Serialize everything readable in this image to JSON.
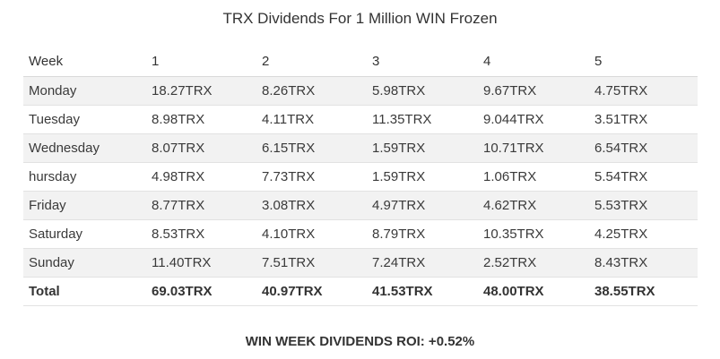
{
  "title": "TRX Dividends For 1 Million WIN Frozen",
  "table": {
    "headers": [
      "Week",
      "1",
      "2",
      "3",
      "4",
      "5"
    ],
    "rows": [
      [
        "Monday",
        "18.27TRX",
        "8.26TRX",
        "5.98TRX",
        "9.67TRX",
        "4.75TRX"
      ],
      [
        "Tuesday",
        "8.98TRX",
        "4.11TRX",
        "11.35TRX",
        "9.044TRX",
        "3.51TRX"
      ],
      [
        "Wednesday",
        "8.07TRX",
        "6.15TRX",
        "1.59TRX",
        "10.71TRX",
        "6.54TRX"
      ],
      [
        "hursday",
        "4.98TRX",
        "7.73TRX",
        "1.59TRX",
        "1.06TRX",
        "5.54TRX"
      ],
      [
        "Friday",
        "8.77TRX",
        "3.08TRX",
        "4.97TRX",
        "4.62TRX",
        "5.53TRX"
      ],
      [
        "Saturday",
        "8.53TRX",
        "4.10TRX",
        "8.79TRX",
        "10.35TRX",
        "4.25TRX"
      ],
      [
        "Sunday",
        "11.40TRX",
        "7.51TRX",
        "7.24TRX",
        "2.52TRX",
        "8.43TRX"
      ]
    ],
    "total": [
      "Total",
      "69.03TRX",
      "40.97TRX",
      "41.53TRX",
      "48.00TRX",
      "38.55TRX"
    ]
  },
  "footer": "WIN WEEK DIVIDENDS ROI: +0.52%"
}
